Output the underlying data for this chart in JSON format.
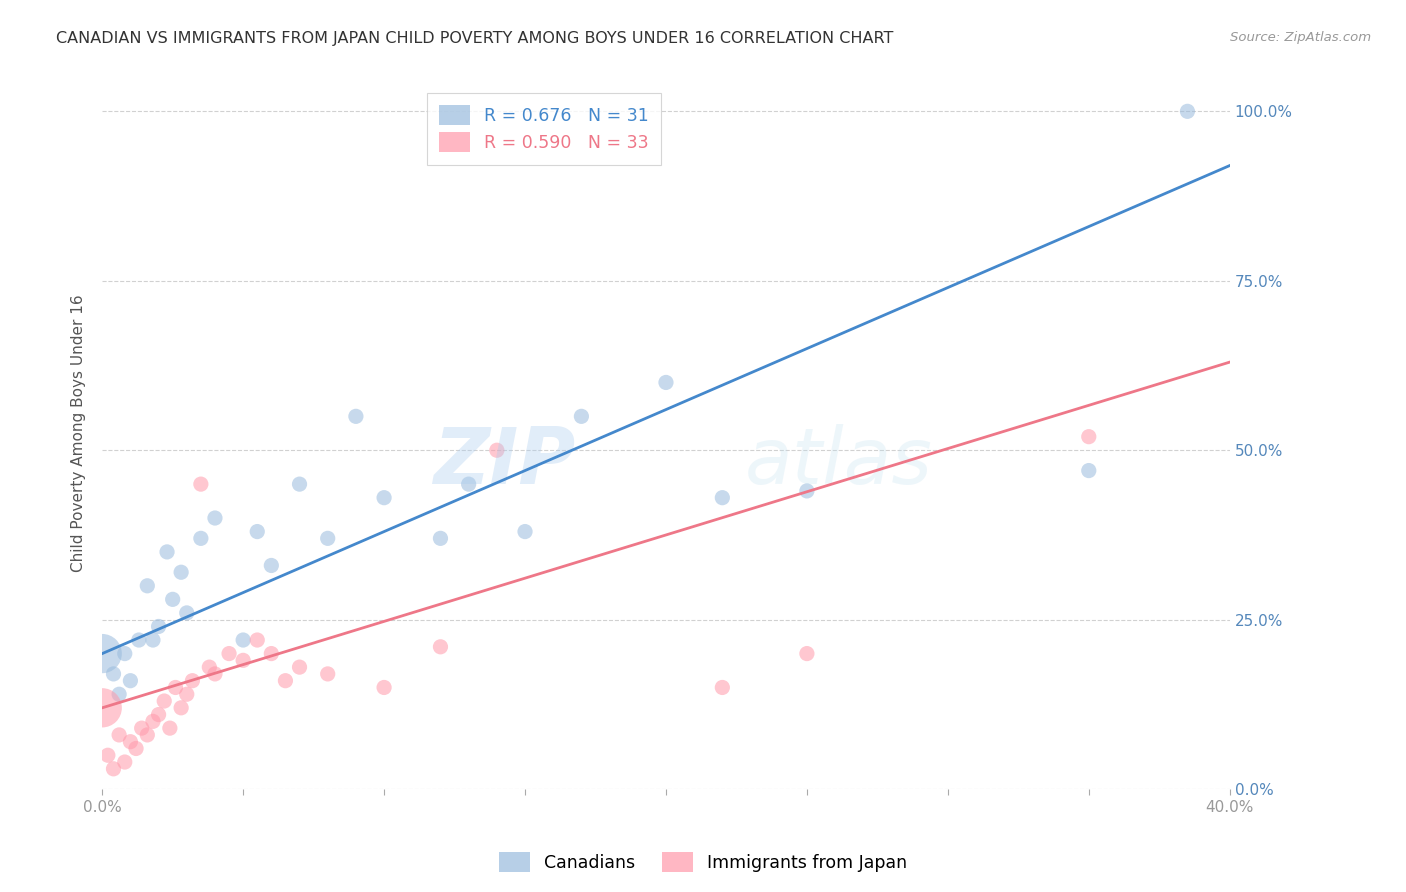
{
  "title": "CANADIAN VS IMMIGRANTS FROM JAPAN CHILD POVERTY AMONG BOYS UNDER 16 CORRELATION CHART",
  "source": "Source: ZipAtlas.com",
  "ylabel": "Child Poverty Among Boys Under 16",
  "ytick_labels": [
    "0.0%",
    "25.0%",
    "50.0%",
    "75.0%",
    "100.0%"
  ],
  "ytick_values": [
    0,
    25,
    50,
    75,
    100
  ],
  "legend_label1": "Canadians",
  "legend_label2": "Immigrants from Japan",
  "legend_R1": "R = 0.676",
  "legend_N1": "N = 31",
  "legend_R2": "R = 0.590",
  "legend_N2": "N = 33",
  "color_blue": "#99BBDD",
  "color_pink": "#FF99AA",
  "color_line_blue": "#4488CC",
  "color_line_pink": "#EE7788",
  "watermark_zip": "ZIP",
  "watermark_atlas": "atlas",
  "canadians_x": [
    0.0,
    0.4,
    0.6,
    0.8,
    1.0,
    1.3,
    1.6,
    1.8,
    2.0,
    2.3,
    2.5,
    2.8,
    3.0,
    3.5,
    4.0,
    5.0,
    5.5,
    6.0,
    7.0,
    8.0,
    9.0,
    10.0,
    12.0,
    13.0,
    15.0,
    17.0,
    20.0,
    22.0,
    25.0,
    35.0,
    38.5
  ],
  "canadians_y": [
    20,
    17,
    14,
    20,
    16,
    22,
    30,
    22,
    24,
    35,
    28,
    32,
    26,
    37,
    40,
    22,
    38,
    33,
    45,
    37,
    55,
    43,
    37,
    45,
    38,
    55,
    60,
    43,
    44,
    47,
    100
  ],
  "canadians_sizes": [
    800,
    120,
    120,
    120,
    120,
    120,
    120,
    120,
    120,
    120,
    120,
    120,
    120,
    120,
    120,
    120,
    120,
    120,
    120,
    120,
    120,
    120,
    120,
    120,
    120,
    120,
    120,
    120,
    120,
    120,
    120
  ],
  "japan_x": [
    0.0,
    0.2,
    0.4,
    0.6,
    0.8,
    1.0,
    1.2,
    1.4,
    1.6,
    1.8,
    2.0,
    2.2,
    2.4,
    2.6,
    2.8,
    3.0,
    3.2,
    3.5,
    3.8,
    4.0,
    4.5,
    5.0,
    5.5,
    6.0,
    6.5,
    7.0,
    8.0,
    10.0,
    12.0,
    14.0,
    22.0,
    25.0,
    35.0
  ],
  "japan_y": [
    12,
    5,
    3,
    8,
    4,
    7,
    6,
    9,
    8,
    10,
    11,
    13,
    9,
    15,
    12,
    14,
    16,
    45,
    18,
    17,
    20,
    19,
    22,
    20,
    16,
    18,
    17,
    15,
    21,
    50,
    15,
    20,
    52
  ],
  "japan_sizes": [
    800,
    120,
    120,
    120,
    120,
    120,
    120,
    120,
    120,
    120,
    120,
    120,
    120,
    120,
    120,
    120,
    120,
    120,
    120,
    120,
    120,
    120,
    120,
    120,
    120,
    120,
    120,
    120,
    120,
    120,
    120,
    120,
    120
  ],
  "canadians_trendline": [
    0.0,
    40.0,
    20.0,
    92.0
  ],
  "japan_trendline": [
    0.0,
    40.0,
    12.0,
    63.0
  ],
  "xmin": 0,
  "xmax": 40,
  "ymin": 0,
  "ymax": 105,
  "dot_alpha": 0.55,
  "background_color": "#FFFFFF",
  "grid_color": "#CCCCCC",
  "title_fontsize": 11.5,
  "axis_label_fontsize": 11,
  "tick_fontsize": 11,
  "tick_color_right": "#5588BB",
  "tick_color_x": "#999999",
  "legend_fontsize": 12.5
}
